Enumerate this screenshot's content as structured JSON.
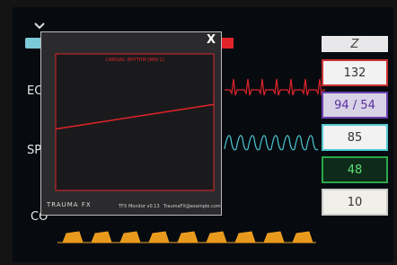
{
  "labels": {
    "ecg": "EC",
    "spo2": "SP",
    "co2": "CO"
  },
  "vitals": {
    "top": "Z",
    "hr": "132",
    "bp": "94 / 54",
    "spo2": "85",
    "rr": "48",
    "etco2": "10"
  },
  "popup": {
    "close": "X",
    "logo": "TRAUMA FX",
    "version": "TFX Monitor v0.13",
    "contact": "TraumaFX@example.com"
  },
  "chart_data": {
    "type": "line",
    "title": "CARDIAC RHYTHM [MIN 1]",
    "x": [
      0,
      10
    ],
    "values": [
      45,
      63
    ],
    "color": "#e0242a",
    "xlim": [
      0,
      10
    ],
    "ylim": [
      0,
      100
    ]
  }
}
